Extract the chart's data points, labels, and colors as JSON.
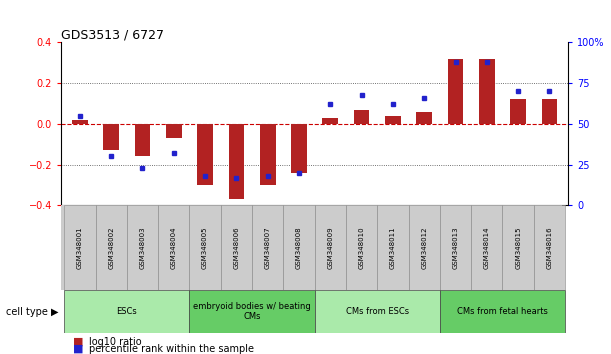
{
  "title": "GDS3513 / 6727",
  "samples": [
    "GSM348001",
    "GSM348002",
    "GSM348003",
    "GSM348004",
    "GSM348005",
    "GSM348006",
    "GSM348007",
    "GSM348008",
    "GSM348009",
    "GSM348010",
    "GSM348011",
    "GSM348012",
    "GSM348013",
    "GSM348014",
    "GSM348015",
    "GSM348016"
  ],
  "log10_ratio": [
    0.02,
    -0.13,
    -0.16,
    -0.07,
    -0.3,
    -0.37,
    -0.3,
    -0.24,
    0.03,
    0.07,
    0.04,
    0.06,
    0.32,
    0.32,
    0.12,
    0.12
  ],
  "percentile_rank": [
    55,
    30,
    23,
    32,
    18,
    17,
    18,
    20,
    62,
    68,
    62,
    66,
    88,
    88,
    70,
    70
  ],
  "bar_color": "#b22222",
  "dot_color": "#2222cc",
  "ylim_left": [
    -0.4,
    0.4
  ],
  "ylim_right": [
    0,
    100
  ],
  "yticks_left": [
    -0.4,
    -0.2,
    0.0,
    0.2,
    0.4
  ],
  "yticks_right": [
    0,
    25,
    50,
    75,
    100
  ],
  "ytick_labels_right": [
    "0",
    "25",
    "50",
    "75",
    "100%"
  ],
  "hline_zero_color": "#cc0000",
  "cell_groups": [
    {
      "label": "ESCs",
      "start": 0,
      "end": 3,
      "color": "#aaeaaa"
    },
    {
      "label": "embryoid bodies w/ beating\nCMs",
      "start": 4,
      "end": 7,
      "color": "#66cc66"
    },
    {
      "label": "CMs from ESCs",
      "start": 8,
      "end": 11,
      "color": "#aaeaaa"
    },
    {
      "label": "CMs from fetal hearts",
      "start": 12,
      "end": 15,
      "color": "#66cc66"
    }
  ],
  "legend_red_label": "log10 ratio",
  "legend_blue_label": "percentile rank within the sample",
  "cell_type_label": "cell type",
  "sample_box_color": "#cccccc",
  "sample_box_edge": "#888888"
}
